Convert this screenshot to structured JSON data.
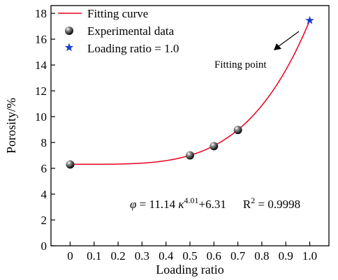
{
  "chart_data": {
    "type": "scatter",
    "xlabel": "Loading ratio",
    "ylabel": "Porosity/%",
    "xlim": [
      -0.08,
      1.08
    ],
    "ylim": [
      0,
      18.6
    ],
    "xticks": [
      0,
      0.1,
      0.2,
      0.3,
      0.4,
      0.5,
      0.6,
      0.7,
      0.8,
      0.9,
      1.0
    ],
    "xtick_labels": [
      "0",
      "0.1",
      "0.2",
      "0.3",
      "0.4",
      "0.5",
      "0.6",
      "0.7",
      "0.8",
      "0.9",
      "1.0"
    ],
    "yticks": [
      0,
      2,
      4,
      6,
      8,
      10,
      12,
      14,
      16,
      18
    ],
    "ytick_labels": [
      "0",
      "2",
      "4",
      "6",
      "8",
      "10",
      "12",
      "14",
      "16",
      "18"
    ],
    "grid": false,
    "legend_position": "top-left",
    "series": [
      {
        "name": "Fitting curve",
        "kind": "line",
        "color": "#e8001c",
        "model": {
          "a": 11.14,
          "b": 4.01,
          "c": 6.31,
          "x_range": [
            0,
            1.0
          ]
        }
      },
      {
        "name": "Experimental data",
        "kind": "scatter",
        "color": "#000000",
        "x": [
          0,
          0.5,
          0.6,
          0.7
        ],
        "y": [
          6.3,
          7.0,
          7.72,
          8.97
        ]
      },
      {
        "name": "Loading ratio = 1.0",
        "kind": "scatter",
        "marker": "star",
        "color": "#1a3fd1",
        "x": [
          1.0
        ],
        "y": [
          17.45
        ]
      }
    ],
    "annotations": {
      "fitting_point": "Fitting point",
      "equation": {
        "phi": "φ",
        "eq1": " = 11.14 ",
        "kappa": "κ",
        "exp": "4.01",
        "eq2": "+6.31",
        "r2_base": "R",
        "r2_exp": "2",
        "r2_val": " = 0.9998"
      }
    }
  }
}
